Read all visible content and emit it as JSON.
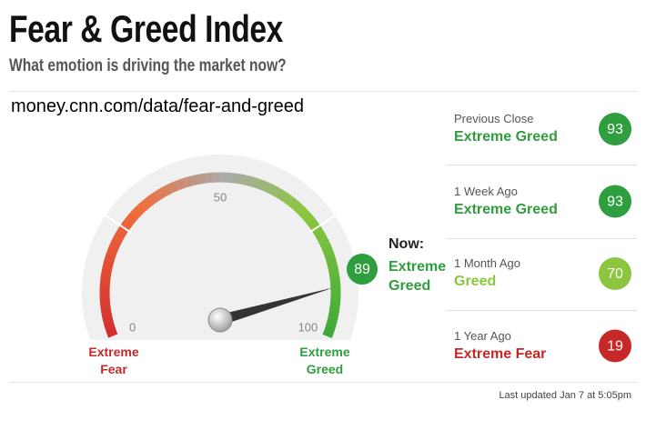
{
  "header": {
    "title": "Fear & Greed Index",
    "subtitle": "What emotion is driving the market now?"
  },
  "url": "money.cnn.com/data/fear-and-greed",
  "gauge": {
    "value": 89,
    "range": [
      0,
      100
    ],
    "ticks": [
      0,
      50,
      100
    ],
    "color": "#2e9e3e",
    "min_label": "Extreme Fear",
    "max_label": "Extreme Greed",
    "now_label": "Now:",
    "now_rating": "Extreme Greed"
  },
  "history": [
    {
      "label": "Previous Close",
      "rating": "Extreme Greed",
      "value": 93,
      "color": "#2e9e3e"
    },
    {
      "label": "1 Week Ago",
      "rating": "Extreme Greed",
      "value": 93,
      "color": "#2e9e3e"
    },
    {
      "label": "1 Month Ago",
      "rating": "Greed",
      "value": 70,
      "color": "#8cc63f"
    },
    {
      "label": "1 Year Ago",
      "rating": "Extreme Fear",
      "value": 19,
      "color": "#c62828"
    }
  ],
  "footer": "Last updated Jan 7 at 5:05pm"
}
